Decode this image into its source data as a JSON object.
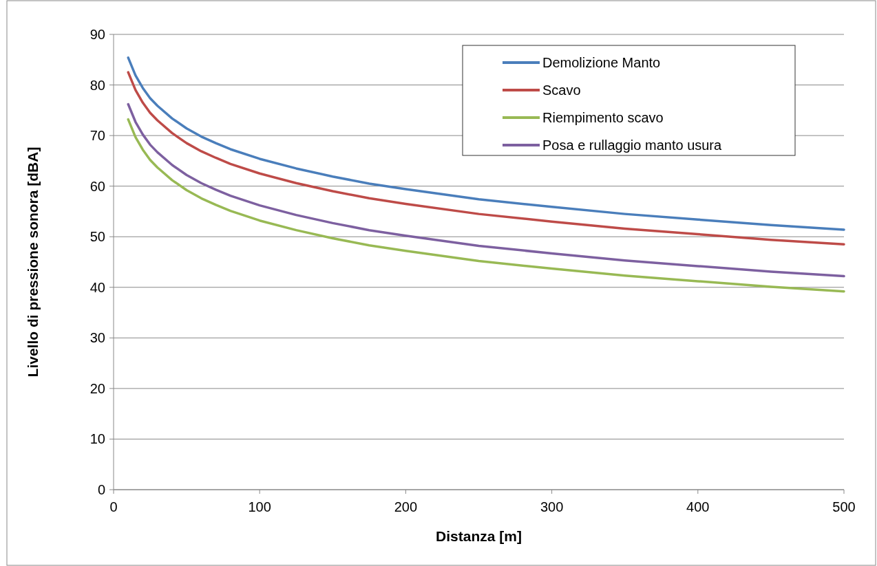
{
  "chart_data": {
    "type": "line",
    "xlabel": "Distanza [m]",
    "ylabel": "Livello di pressione sonora [dBA]",
    "x": [
      10,
      15,
      20,
      25,
      30,
      40,
      50,
      60,
      70,
      80,
      100,
      125,
      150,
      175,
      200,
      250,
      300,
      350,
      400,
      450,
      500
    ],
    "series": [
      {
        "name": "Demolizione Manto",
        "color": "#4a7ebb",
        "values": [
          85.4,
          81.9,
          79.4,
          77.4,
          75.9,
          73.4,
          71.4,
          69.8,
          68.5,
          67.3,
          65.4,
          63.5,
          61.9,
          60.5,
          59.4,
          57.4,
          55.9,
          54.5,
          53.4,
          52.3,
          51.4
        ]
      },
      {
        "name": "Scavo",
        "color": "#be4b48",
        "values": [
          82.5,
          79.0,
          76.5,
          74.5,
          73.0,
          70.5,
          68.5,
          66.9,
          65.6,
          64.4,
          62.5,
          60.6,
          59.0,
          57.6,
          56.5,
          54.5,
          53.0,
          51.6,
          50.5,
          49.4,
          48.5
        ]
      },
      {
        "name": "Riempimento scavo",
        "color": "#98b954",
        "values": [
          73.2,
          69.7,
          67.2,
          65.2,
          63.7,
          61.2,
          59.2,
          57.6,
          56.3,
          55.1,
          53.2,
          51.3,
          49.7,
          48.3,
          47.2,
          45.2,
          43.7,
          42.3,
          41.2,
          40.1,
          39.2
        ]
      },
      {
        "name": "Posa e rullaggio manto usura",
        "color": "#7d60a0",
        "values": [
          76.2,
          72.7,
          70.2,
          68.2,
          66.7,
          64.2,
          62.2,
          60.6,
          59.3,
          58.1,
          56.2,
          54.3,
          52.7,
          51.3,
          50.2,
          48.2,
          46.7,
          45.3,
          44.2,
          43.1,
          42.2
        ]
      }
    ],
    "xlim": [
      0,
      500
    ],
    "xticks": [
      0,
      100,
      200,
      300,
      400,
      500
    ],
    "ylim": [
      0,
      90
    ],
    "yticks": [
      0,
      10,
      20,
      30,
      40,
      50,
      60,
      70,
      80,
      90
    ],
    "grid": "y",
    "legend": "top right",
    "marker": "none",
    "line_style": "solid"
  }
}
